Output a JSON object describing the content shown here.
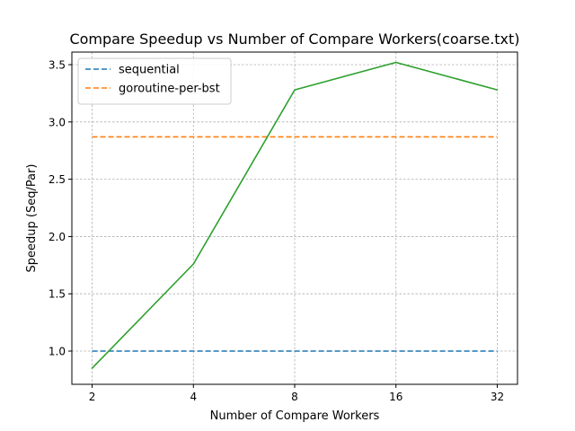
{
  "chart_data": {
    "type": "line",
    "title": "Compare Speedup vs Number of Compare Workers(coarse.txt)",
    "xlabel": "Number of Compare Workers",
    "ylabel": "Speedup (Seq/Par)",
    "x": [
      2,
      4,
      8,
      16,
      32
    ],
    "x_tick_labels": [
      "2",
      "4",
      "8",
      "16",
      "32"
    ],
    "x_scale": "log2",
    "ylim": [
      0.71,
      3.61
    ],
    "y_ticks": [
      1.0,
      1.5,
      2.0,
      2.5,
      3.0,
      3.5
    ],
    "y_tick_labels": [
      "1.0",
      "1.5",
      "2.0",
      "2.5",
      "3.0",
      "3.5"
    ],
    "grid": true,
    "legend_position": "top-left",
    "series": [
      {
        "name": "sequential",
        "style": "dashed",
        "color": "#1f77b4",
        "values": [
          1.0,
          1.0,
          1.0,
          1.0,
          1.0
        ],
        "in_legend": true
      },
      {
        "name": "goroutine-per-bst",
        "style": "dashed",
        "color": "#ff7f0e",
        "values": [
          2.87,
          2.87,
          2.87,
          2.87,
          2.87
        ],
        "in_legend": true
      },
      {
        "style": "solid",
        "color": "#2ca02c",
        "values": [
          0.85,
          1.76,
          3.28,
          3.52,
          3.28
        ],
        "in_legend": false
      }
    ]
  }
}
